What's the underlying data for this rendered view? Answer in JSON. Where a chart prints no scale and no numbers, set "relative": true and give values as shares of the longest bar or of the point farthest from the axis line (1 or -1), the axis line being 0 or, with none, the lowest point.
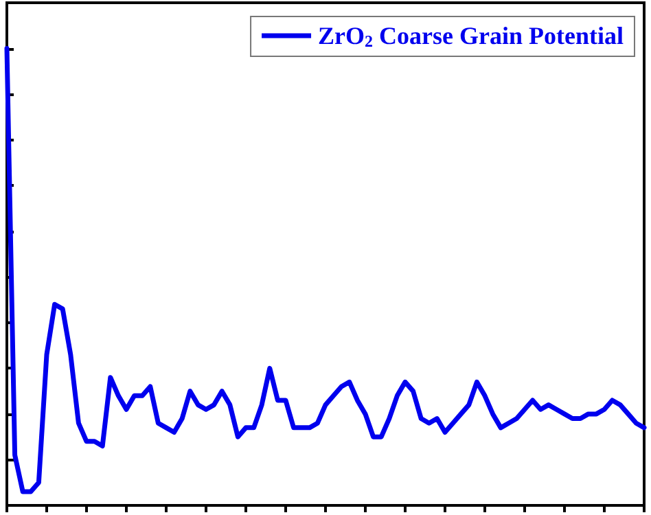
{
  "chart_data": {
    "type": "line",
    "relative": true,
    "tick_labels": false,
    "grid": false,
    "legend": "top right",
    "line_style": "solid",
    "categories": [
      null,
      null,
      null,
      null,
      null,
      null,
      null,
      null,
      null,
      null,
      null,
      null,
      null,
      null,
      null,
      null,
      null,
      null,
      null,
      null,
      null,
      null,
      null,
      null,
      null,
      null,
      null,
      null,
      null,
      null,
      null,
      null,
      null,
      null,
      null,
      null,
      null,
      null,
      null,
      null,
      null,
      null,
      null,
      null,
      null,
      null,
      null,
      null,
      null,
      null,
      null,
      null,
      null,
      null,
      null,
      null,
      null,
      null,
      null,
      null,
      null,
      null,
      null,
      null,
      null,
      null,
      null,
      null,
      null,
      null,
      null,
      null,
      null,
      null,
      null,
      null,
      null,
      null,
      null,
      null,
      null
    ],
    "series": [
      {
        "name": "ZrO$_{2}$ Coarse Grain Potential",
        "color": "#0000ee",
        "values": [
          1.0,
          0.11,
          0.03,
          0.03,
          0.05,
          0.33,
          0.44,
          0.43,
          0.33,
          0.18,
          0.14,
          0.14,
          0.13,
          0.28,
          0.24,
          0.21,
          0.24,
          0.24,
          0.26,
          0.18,
          0.17,
          0.16,
          0.19,
          0.25,
          0.22,
          0.21,
          0.22,
          0.25,
          0.22,
          0.15,
          0.17,
          0.17,
          0.22,
          0.3,
          0.23,
          0.23,
          0.17,
          0.17,
          0.17,
          0.18,
          0.22,
          0.24,
          0.26,
          0.27,
          0.23,
          0.2,
          0.15,
          0.15,
          0.19,
          0.24,
          0.27,
          0.25,
          0.19,
          0.18,
          0.19,
          0.16,
          0.18,
          0.2,
          0.22,
          0.27,
          0.24,
          0.2,
          0.17,
          0.18,
          0.19,
          0.21,
          0.23,
          0.21,
          0.22,
          0.21,
          0.2,
          0.19,
          0.19,
          0.2,
          0.2,
          0.21,
          0.23,
          0.22,
          0.2,
          0.18,
          0.17
        ]
      }
    ]
  }
}
